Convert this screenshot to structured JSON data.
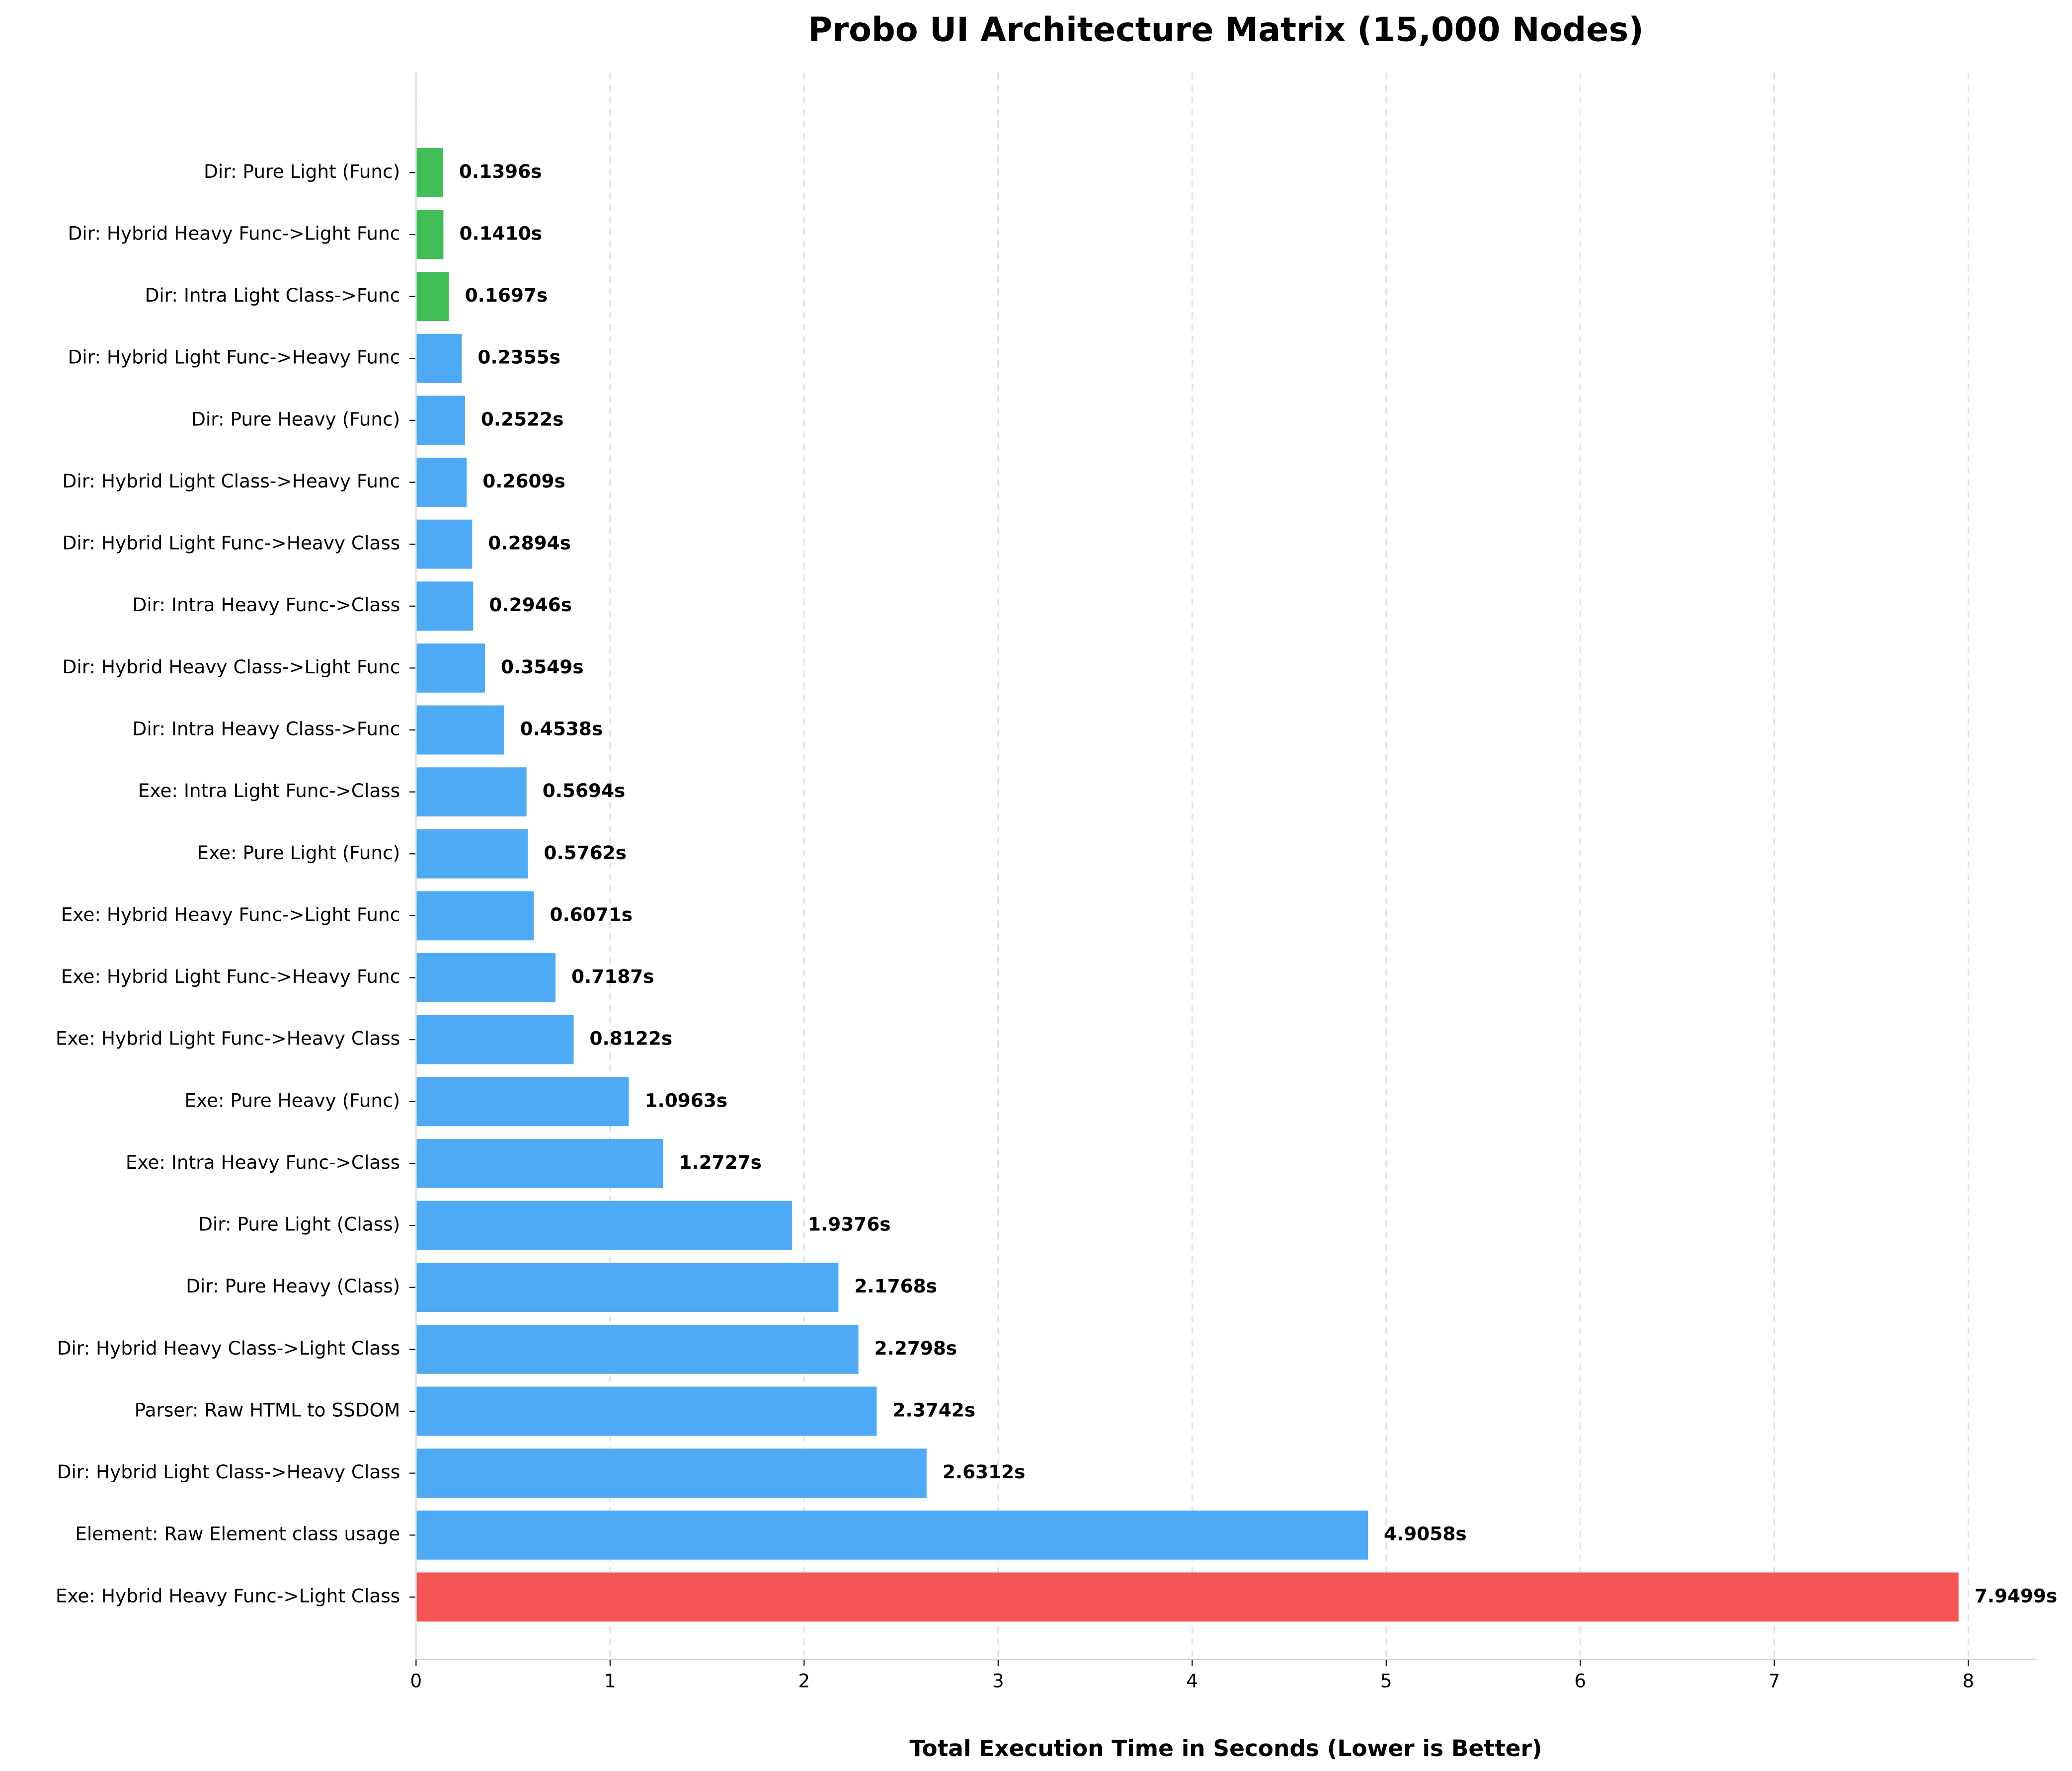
{
  "chart_data": {
    "type": "bar",
    "orientation": "horizontal",
    "title": "Probo UI Architecture Matrix (15,000 Nodes)",
    "x_label": "Total Execution Time in Seconds (Lower is Better)",
    "categories": [
      "Dir: Pure Light (Func)",
      "Dir: Hybrid Heavy Func->Light Func",
      "Dir: Intra Light Class->Func",
      "Dir: Hybrid Light Func->Heavy Func",
      "Dir: Pure Heavy (Func)",
      "Dir: Hybrid Light Class->Heavy Func",
      "Dir: Hybrid Light Func->Heavy Class",
      "Dir: Intra Heavy Func->Class",
      "Dir: Hybrid Heavy Class->Light Func",
      "Dir: Intra Heavy Class->Func",
      "Exe: Intra Light Func->Class",
      "Exe: Pure Light (Func)",
      "Exe: Hybrid Heavy Func->Light Func",
      "Exe: Hybrid Light Func->Heavy Func",
      "Exe: Hybrid Light Func->Heavy Class",
      "Exe: Pure Heavy (Func)",
      "Exe: Intra Heavy Func->Class",
      "Dir: Pure Light (Class)",
      "Dir: Pure Heavy (Class)",
      "Dir: Hybrid Heavy Class->Light Class",
      "Parser: Raw HTML to SSDOM",
      "Dir: Hybrid Light Class->Heavy Class",
      "Element: Raw Element class usage",
      "Exe: Hybrid Heavy Func->Light Class"
    ],
    "values": [
      0.1396,
      0.141,
      0.1697,
      0.2355,
      0.2522,
      0.2609,
      0.2894,
      0.2946,
      0.3549,
      0.4538,
      0.5694,
      0.5762,
      0.6071,
      0.7187,
      0.8122,
      1.0963,
      1.2727,
      1.9376,
      2.1768,
      2.2798,
      2.3742,
      2.6312,
      4.9058,
      7.9499
    ],
    "value_labels": [
      "0.1396s",
      "0.1410s",
      "0.1697s",
      "0.2355s",
      "0.2522s",
      "0.2609s",
      "0.2894s",
      "0.2946s",
      "0.3549s",
      "0.4538s",
      "0.5694s",
      "0.5762s",
      "0.6071s",
      "0.7187s",
      "0.8122s",
      "1.0963s",
      "1.2727s",
      "1.9376s",
      "2.1768s",
      "2.2798s",
      "2.3742s",
      "2.6312s",
      "4.9058s",
      "7.9499s"
    ],
    "colors": [
      "#41be55",
      "#41be55",
      "#41be55",
      "#4eaaf5",
      "#4eaaf5",
      "#4eaaf5",
      "#4eaaf5",
      "#4eaaf5",
      "#4eaaf5",
      "#4eaaf5",
      "#4eaaf5",
      "#4eaaf5",
      "#4eaaf5",
      "#4eaaf5",
      "#4eaaf5",
      "#4eaaf5",
      "#4eaaf5",
      "#4eaaf5",
      "#4eaaf5",
      "#4eaaf5",
      "#4eaaf5",
      "#4eaaf5",
      "#4eaaf5",
      "#f55555"
    ],
    "xlim": [
      0,
      8.347
    ],
    "xticks": [
      0,
      1,
      2,
      3,
      4,
      5,
      6,
      7,
      8
    ],
    "grid": true
  }
}
